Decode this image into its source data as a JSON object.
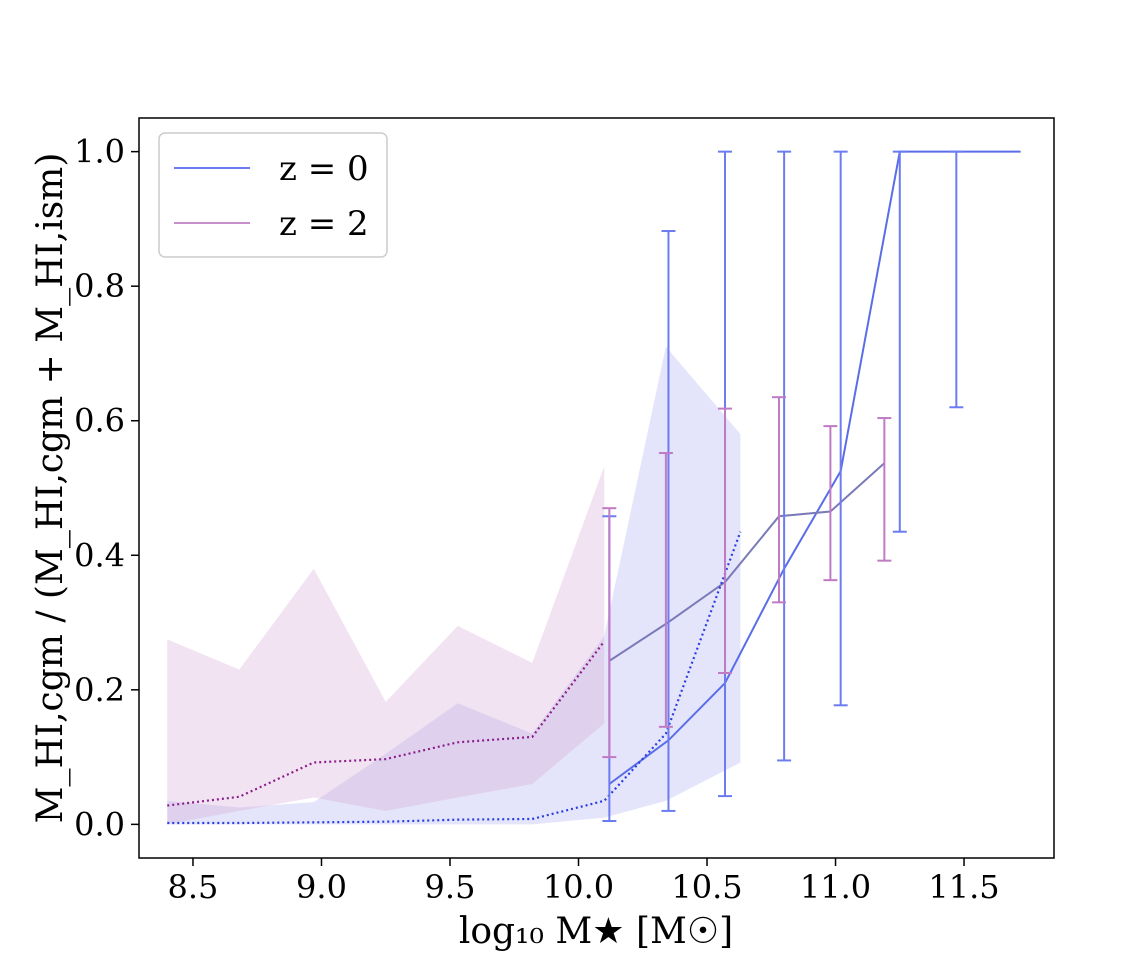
{
  "chart_data": {
    "type": "line",
    "xlabel": "log₁₀ M★ [M☉]",
    "ylabel": "M_HI,cgm / (M_HI,cgm + M_HI,ism)",
    "xlim": [
      8.29,
      11.85
    ],
    "ylim": [
      -0.05,
      1.05
    ],
    "xticks": [
      "8.5",
      "9.0",
      "9.5",
      "10.0",
      "10.5",
      "11.0",
      "11.5"
    ],
    "yticks": [
      "0.0",
      "0.2",
      "0.4",
      "0.6",
      "0.8",
      "1.0"
    ],
    "grid": false,
    "legend_position": "top-left",
    "legend": [
      {
        "label": "z = 0",
        "color": "#6b7cf0"
      },
      {
        "label": "z = 2",
        "color": "#c78ec9"
      }
    ],
    "series": [
      {
        "name": "z = 0",
        "style": "solid",
        "color": "#5a6de8",
        "x": [
          10.12,
          10.35,
          10.57,
          10.8,
          11.02,
          11.25,
          11.47,
          11.72
        ],
        "y": [
          0.06,
          0.125,
          0.21,
          0.38,
          0.525,
          1.0,
          1.0,
          1.0
        ],
        "err_low": [
          0.005,
          0.02,
          0.042,
          0.095,
          0.177,
          0.435,
          0.62,
          1.0
        ],
        "err_high": [
          0.458,
          0.882,
          1.0,
          1.0,
          1.0,
          1.0,
          1.0,
          1.0
        ]
      },
      {
        "name": "z = 2",
        "style": "solid",
        "color": "#7a7ab8",
        "x": [
          10.12,
          10.34,
          10.57,
          10.78,
          10.98,
          11.19
        ],
        "y": [
          0.243,
          0.298,
          0.36,
          0.458,
          0.465,
          0.537
        ],
        "err_low": [
          0.1,
          0.145,
          0.225,
          0.33,
          0.363,
          0.392
        ],
        "err_high": [
          0.47,
          0.552,
          0.618,
          0.635,
          0.592,
          0.604
        ]
      },
      {
        "style": "dotted",
        "color": "#2a3fe0",
        "x": [
          8.4,
          8.68,
          8.97,
          9.25,
          9.53,
          9.82,
          10.1,
          10.34,
          10.63
        ],
        "y": [
          0.002,
          0.002,
          0.003,
          0.004,
          0.007,
          0.008,
          0.035,
          0.135,
          0.435
        ]
      },
      {
        "style": "dotted",
        "color": "#8b1f8b",
        "x": [
          8.4,
          8.68,
          8.97,
          9.25,
          9.53,
          9.82,
          10.1
        ],
        "y": [
          0.028,
          0.041,
          0.092,
          0.097,
          0.122,
          0.13,
          0.272
        ]
      }
    ],
    "bands": [
      {
        "color": "#8f8ff0",
        "opacity": 0.24,
        "x": [
          8.4,
          8.68,
          8.97,
          9.25,
          9.53,
          9.82,
          10.1,
          10.34,
          10.63
        ],
        "low": [
          0.0,
          0.0,
          0.0,
          0.0,
          0.0,
          0.0,
          0.01,
          0.035,
          0.092
        ],
        "high": [
          0.035,
          0.025,
          0.033,
          0.105,
          0.18,
          0.135,
          0.28,
          0.71,
          0.58
        ]
      },
      {
        "color": "#d6aed6",
        "opacity": 0.35,
        "x": [
          8.4,
          8.68,
          8.97,
          9.25,
          9.53,
          9.82,
          10.1
        ],
        "low": [
          0.0,
          0.02,
          0.04,
          0.02,
          0.04,
          0.06,
          0.15
        ],
        "high": [
          0.275,
          0.23,
          0.38,
          0.182,
          0.295,
          0.24,
          0.532
        ]
      }
    ]
  }
}
